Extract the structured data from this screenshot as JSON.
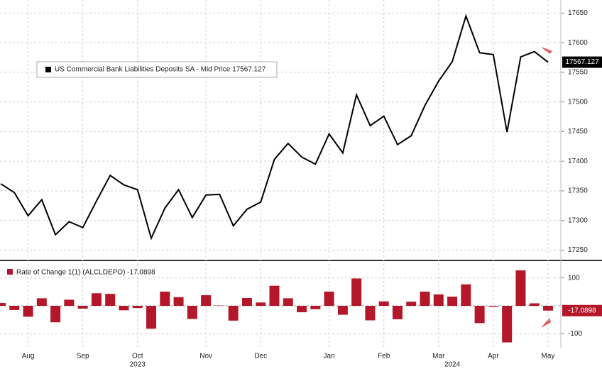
{
  "chart_data": [
    {
      "type": "line",
      "series": [
        {
          "name": "US Commercial Bank Liabilities Deposits SA - Mid Price 17567.127",
          "color": "#000000",
          "values": [
            17362,
            17347,
            17308,
            17335,
            17276,
            17298,
            17288,
            17333,
            17376,
            17360,
            17352,
            17270,
            17321,
            17352,
            17305,
            17343,
            17344,
            17291,
            17319,
            17331,
            17403,
            17430,
            17407,
            17395,
            17446,
            17414,
            17512,
            17460,
            17476,
            17428,
            17443,
            17494,
            17535,
            17568,
            17645,
            17583,
            17580,
            17449,
            17576,
            17585,
            17567.127
          ],
          "last_label": "17567.127"
        }
      ],
      "ylim": [
        17235,
        17672
      ],
      "yticks": [
        17250,
        17300,
        17350,
        17400,
        17450,
        17500,
        17550,
        17600,
        17650
      ],
      "grid": true
    },
    {
      "type": "bar",
      "categories": [
        null,
        null,
        "Aug",
        null,
        null,
        null,
        "Sep",
        null,
        null,
        null,
        "Oct",
        null,
        null,
        null,
        null,
        "Nov",
        null,
        null,
        null,
        "Dec",
        null,
        null,
        null,
        null,
        "Jan",
        null,
        null,
        null,
        "Feb",
        null,
        null,
        null,
        "Mar",
        null,
        null,
        null,
        "Apr",
        null,
        null,
        null,
        "May"
      ],
      "years": [
        "2023",
        "2024"
      ],
      "series": [
        {
          "name": "Rate of Change 1(1) (ALCLDEPO) -17.0898",
          "color": "#b5172a",
          "values": [
            10,
            -15,
            -39,
            27,
            -59,
            22,
            -10,
            45,
            43,
            -16,
            -8,
            -82,
            51,
            31,
            -47,
            38,
            1,
            -53,
            28,
            12,
            72,
            27,
            -23,
            -12,
            51,
            -32,
            98,
            -52,
            16,
            -48,
            15,
            51,
            41,
            33,
            77,
            -62,
            -3,
            -131,
            127,
            9,
            -17.0898
          ],
          "last_label": "-17.0898"
        }
      ],
      "ylim": [
        -150,
        155
      ],
      "yticks": [
        -100,
        100
      ],
      "grid": true
    }
  ]
}
